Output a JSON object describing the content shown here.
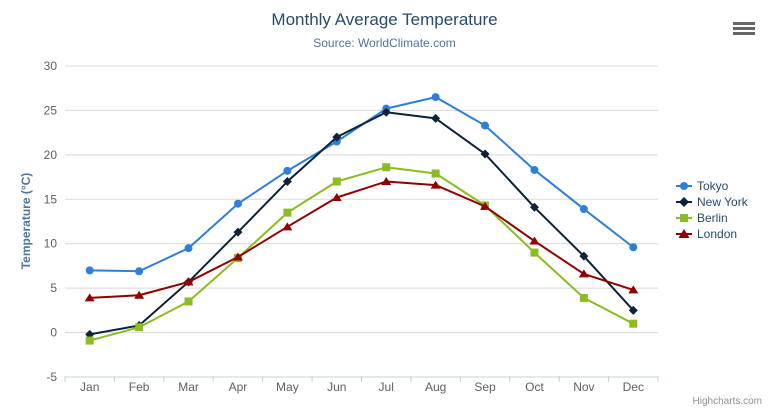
{
  "chart_data": {
    "type": "line",
    "title": "Monthly Average Temperature",
    "subtitle": "Source: WorldClimate.com",
    "categories": [
      "Jan",
      "Feb",
      "Mar",
      "Apr",
      "May",
      "Jun",
      "Jul",
      "Aug",
      "Sep",
      "Oct",
      "Nov",
      "Dec"
    ],
    "series": [
      {
        "name": "Tokyo",
        "color": "#2f7ed8",
        "marker": "circle",
        "values": [
          7.0,
          6.9,
          9.5,
          14.5,
          18.2,
          21.5,
          25.2,
          26.5,
          23.3,
          18.3,
          13.9,
          9.6
        ]
      },
      {
        "name": "New York",
        "color": "#0d233a",
        "marker": "diamond",
        "values": [
          -0.2,
          0.8,
          5.7,
          11.3,
          17.0,
          22.0,
          24.8,
          24.1,
          20.1,
          14.1,
          8.6,
          2.5
        ]
      },
      {
        "name": "Berlin",
        "color": "#8bbc21",
        "marker": "square",
        "values": [
          -0.9,
          0.6,
          3.5,
          8.4,
          13.5,
          17.0,
          18.6,
          17.9,
          14.3,
          9.0,
          3.9,
          1.0
        ]
      },
      {
        "name": "London",
        "color": "#910000",
        "marker": "triangle",
        "values": [
          3.9,
          4.2,
          5.7,
          8.5,
          11.9,
          15.2,
          17.0,
          16.6,
          14.2,
          10.3,
          6.6,
          4.8
        ]
      }
    ],
    "xlabel": "",
    "ylabel": "Temperature (°C)",
    "ylim": [
      -5,
      30
    ],
    "yticks": [
      -5,
      0,
      5,
      10,
      15,
      20,
      25,
      30
    ],
    "grid": true,
    "legend_position": "right"
  },
  "credits": {
    "label": "Highcharts.com"
  },
  "colors": {
    "title_text": "#274b6d",
    "subtitle_text": "#4d759e",
    "axis_label_text": "#606060",
    "axis_line": "#c0d0e0",
    "gridline": "#d8d8d8",
    "legend_text": "#274b6d",
    "credits_text": "#909090",
    "menu_icon": "#666666"
  }
}
